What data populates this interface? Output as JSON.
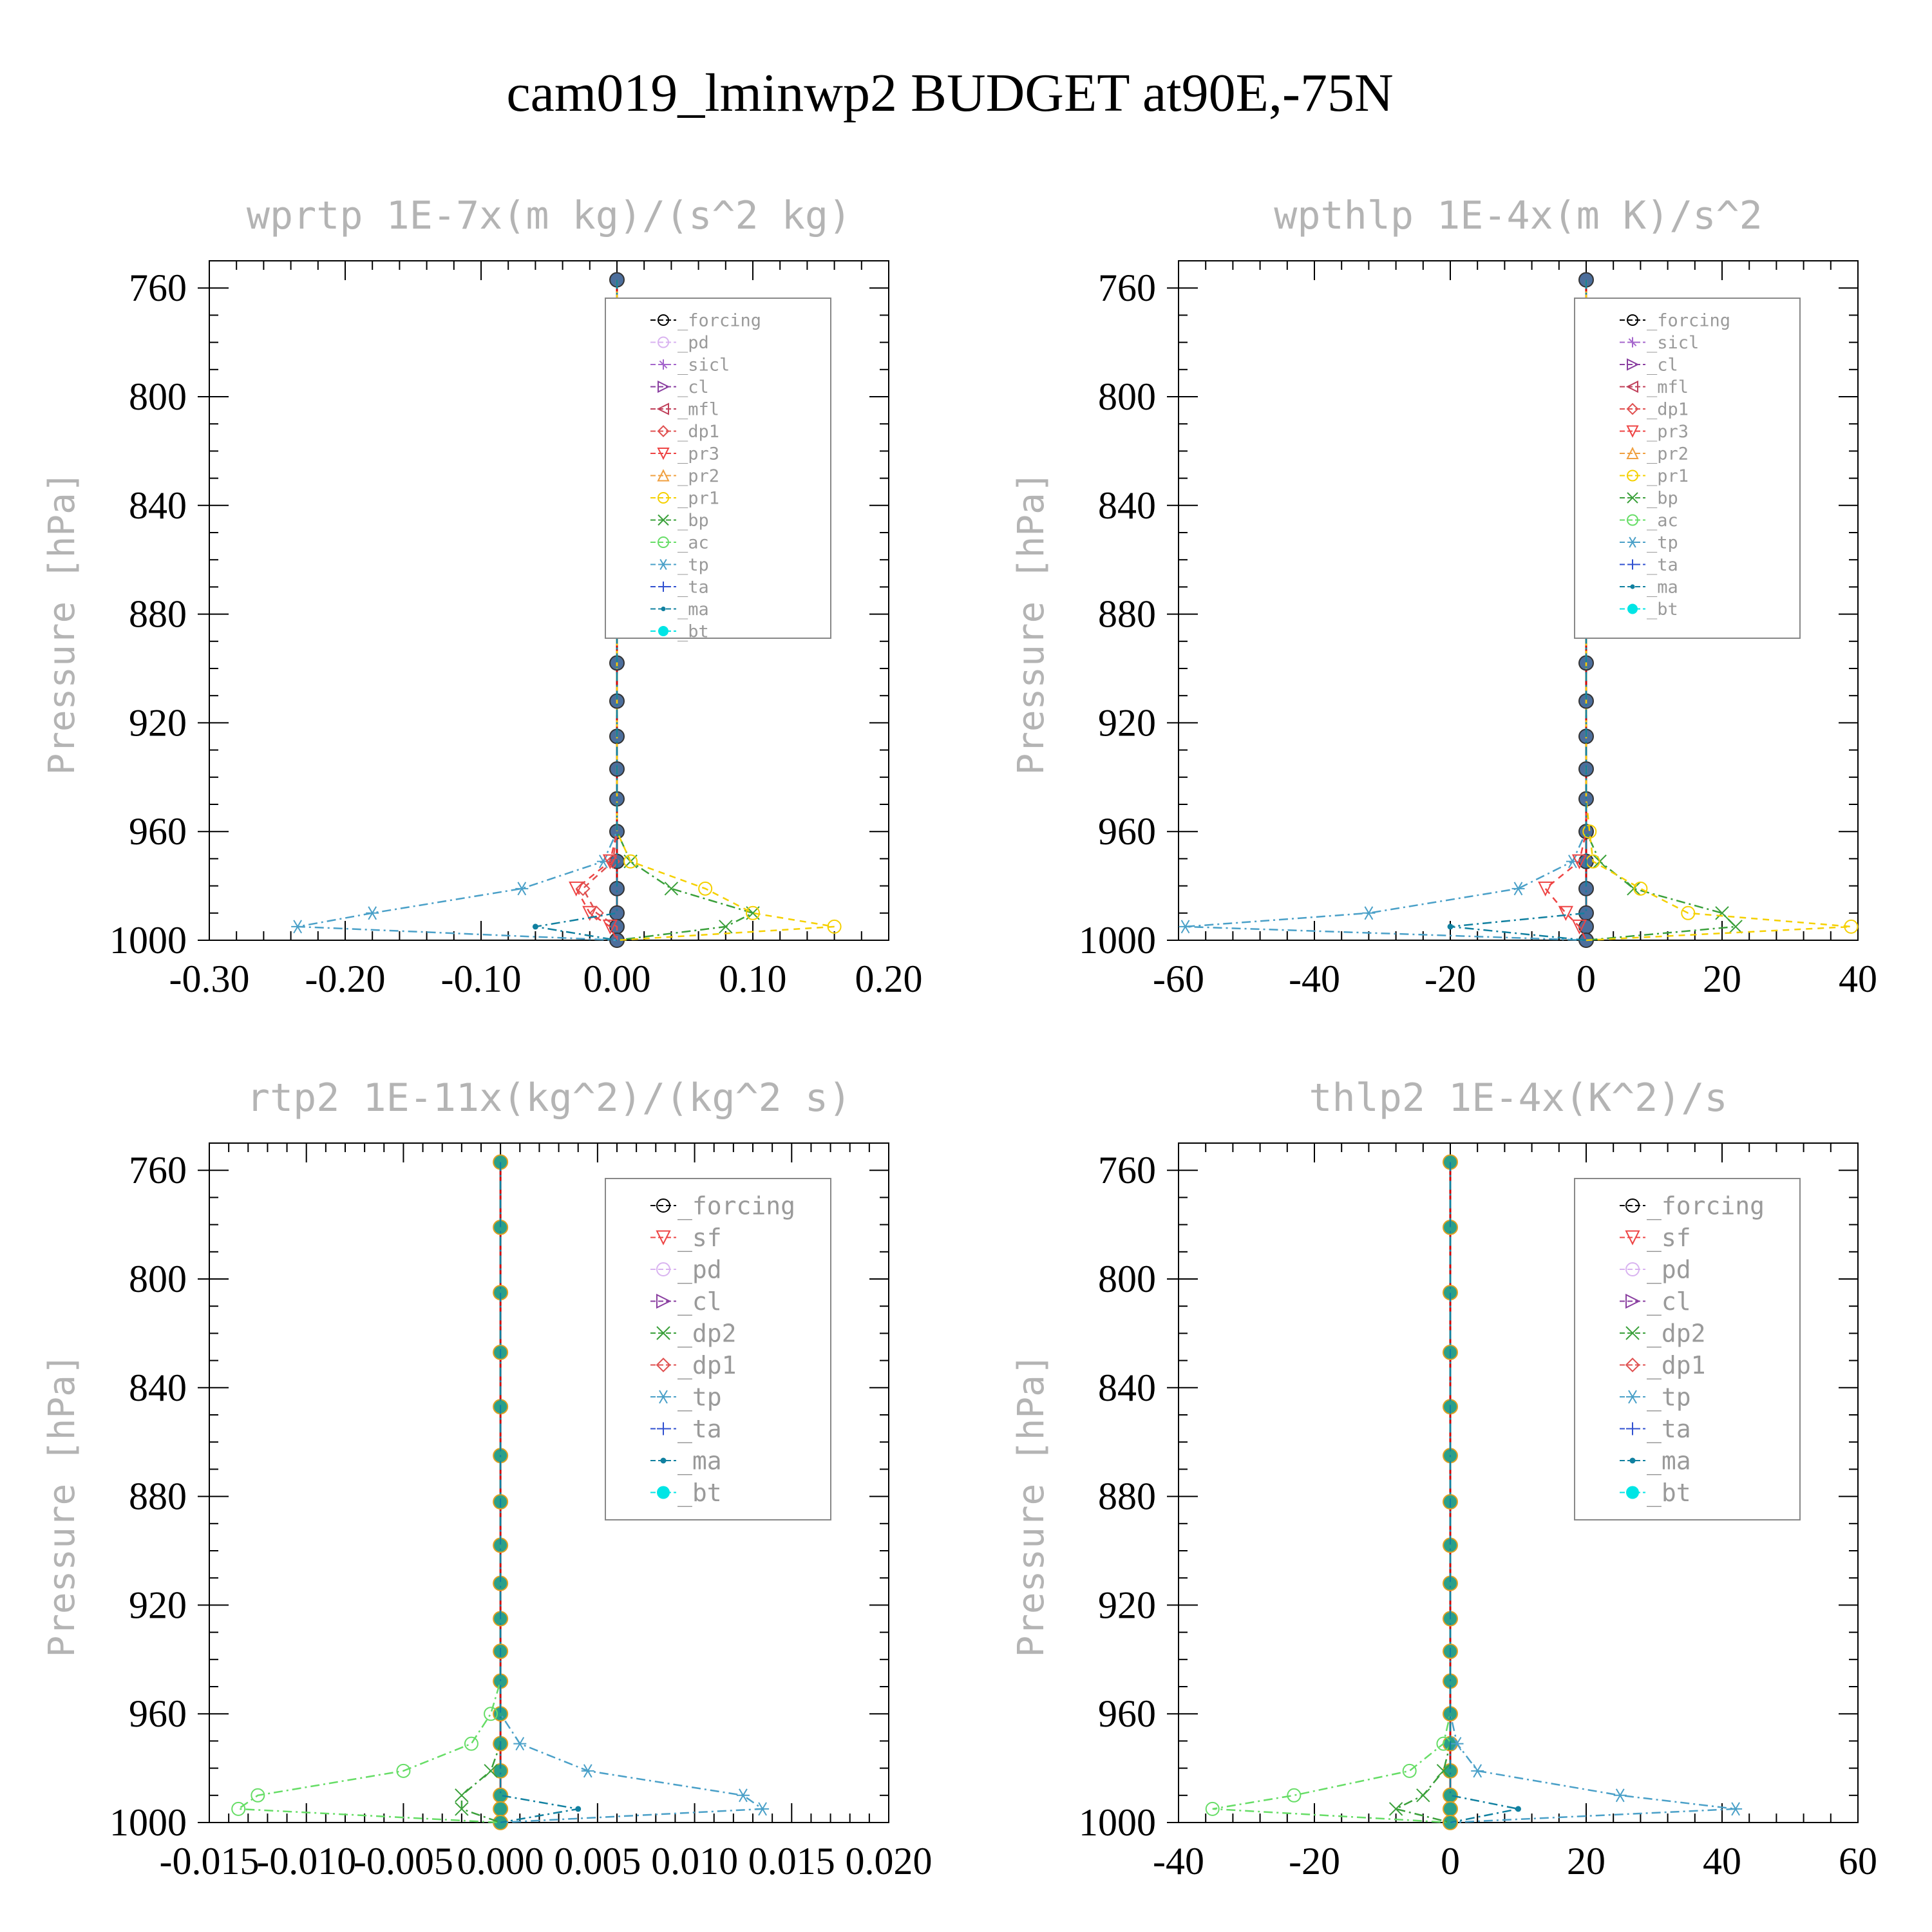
{
  "figure": {
    "title": "cam019_lminwp2  BUDGET at90E,-75N"
  },
  "colors": {
    "_forcing": "#000000",
    "_pd": "#d9b3f0",
    "_sicl": "#a566cc",
    "_cl": "#8a3fa0",
    "_mfl": "#c0405a",
    "_dp1": "#e05050",
    "_pr3": "#ee4444",
    "_pr2": "#f0a040",
    "_pr1": "#f5d000",
    "_bp": "#3aa03a",
    "_ac": "#66dd66",
    "_tp": "#4aa0c8",
    "_ta": "#3050d0",
    "_ma": "#1080a0",
    "_bt": "#00e5e5",
    "_sf": "#ee4444",
    "_dp2": "#3aa03a",
    "zero_line": "#d00000"
  },
  "chart_data": [
    {
      "type": "line",
      "title": "wprtp  1E-7x(m kg)/(s^2 kg)",
      "ylabel": "Pressure [hPa]",
      "xlabel": "",
      "xlim": [
        -0.3,
        0.2
      ],
      "ylim": [
        1000,
        750
      ],
      "xticks": [
        "-0.30",
        "-0.20",
        "-0.10",
        "0.00",
        "0.10",
        "0.20"
      ],
      "yticks": [
        "760",
        "800",
        "840",
        "880",
        "920",
        "960",
        "1000"
      ],
      "levels": [
        757,
        781,
        805,
        827,
        847,
        865,
        882,
        898,
        912,
        925,
        937,
        948,
        960,
        971,
        981,
        990,
        995,
        1000
      ],
      "legend": [
        "_forcing",
        "_pd",
        "_sicl",
        "_cl",
        "_mfl",
        "_dp1",
        "_pr3",
        "_pr2",
        "_pr1",
        "_bp",
        "_ac",
        "_tp",
        "_ta",
        "_ma",
        "_bt"
      ],
      "series": [
        {
          "name": "_tp",
          "nonzero": {
            "971": -0.01,
            "981": -0.07,
            "990": -0.18,
            "995": -0.235
          },
          "marker": "asterisk",
          "dash": "14,6,3,6"
        },
        {
          "name": "_pr3",
          "nonzero": {
            "971": -0.005,
            "981": -0.03,
            "990": -0.02,
            "995": -0.005
          },
          "marker": "tri-down",
          "dash": "10,8"
        },
        {
          "name": "_dp1",
          "nonzero": {
            "971": -0.003,
            "981": -0.025,
            "990": -0.015
          },
          "marker": "diamond",
          "dash": "10,8"
        },
        {
          "name": "_bp",
          "nonzero": {
            "971": 0.01,
            "981": 0.04,
            "990": 0.1,
            "995": 0.08
          },
          "marker": "x",
          "dash": "14,6,3,6"
        },
        {
          "name": "_pr1",
          "nonzero": {
            "971": 0.01,
            "981": 0.065,
            "990": 0.1,
            "995": 0.16
          },
          "marker": "circle",
          "dash": "10,8"
        },
        {
          "name": "_ma",
          "nonzero": {
            "995": -0.06
          },
          "marker": "dot",
          "dash": "14,6,3,6",
          "tail_to_zero": true
        }
      ]
    },
    {
      "type": "line",
      "title": "wpthlp  1E-4x(m K)/s^2",
      "ylabel": "Pressure [hPa]",
      "xlabel": "",
      "xlim": [
        -60,
        40
      ],
      "ylim": [
        1000,
        750
      ],
      "xticks": [
        "-60",
        "-40",
        "-20",
        "0",
        "20",
        "40"
      ],
      "yticks": [
        "760",
        "800",
        "840",
        "880",
        "920",
        "960",
        "1000"
      ],
      "levels": [
        757,
        781,
        805,
        827,
        847,
        865,
        882,
        898,
        912,
        925,
        937,
        948,
        960,
        971,
        981,
        990,
        995,
        1000
      ],
      "legend": [
        "_forcing",
        "_sicl",
        "_cl",
        "_mfl",
        "_dp1",
        "_pr3",
        "_pr2",
        "_pr1",
        "_bp",
        "_ac",
        "_tp",
        "_ta",
        "_ma",
        "_bt"
      ],
      "series": [
        {
          "name": "_tp",
          "nonzero": {
            "971": -2,
            "981": -10,
            "990": -32,
            "995": -59
          },
          "marker": "asterisk",
          "dash": "14,6,3,6"
        },
        {
          "name": "_pr3",
          "nonzero": {
            "971": -1,
            "981": -6,
            "990": -3,
            "995": -1
          },
          "marker": "tri-down",
          "dash": "10,8"
        },
        {
          "name": "_bp",
          "nonzero": {
            "971": 2,
            "981": 7,
            "990": 20,
            "995": 22
          },
          "marker": "x",
          "dash": "14,6,3,6"
        },
        {
          "name": "_pr1",
          "nonzero": {
            "960": 0.5,
            "971": 1,
            "981": 8,
            "990": 15,
            "995": 39
          },
          "marker": "circle",
          "dash": "10,8"
        },
        {
          "name": "_ma",
          "nonzero": {
            "995": -20
          },
          "marker": "dot",
          "dash": "14,6,3,6",
          "tail_to_zero": true
        }
      ]
    },
    {
      "type": "line",
      "title": "rtp2  1E-11x(kg^2)/(kg^2 s)",
      "ylabel": "Pressure [hPa]",
      "xlabel": "",
      "xlim": [
        -0.015,
        0.02
      ],
      "ylim": [
        1000,
        750
      ],
      "xticks": [
        "-0.015",
        "-0.010",
        "-0.005",
        "0.000",
        "0.005",
        "0.010",
        "0.015",
        "0.020"
      ],
      "yticks": [
        "760",
        "800",
        "840",
        "880",
        "920",
        "960",
        "1000"
      ],
      "levels": [
        757,
        781,
        805,
        827,
        847,
        865,
        882,
        898,
        912,
        925,
        937,
        948,
        960,
        971,
        981,
        990,
        995,
        1000
      ],
      "legend": [
        "_forcing",
        "_sf",
        "_pd",
        "_cl",
        "_dp2",
        "_dp1",
        "_tp",
        "_ta",
        "_ma",
        "_bt"
      ],
      "series": [
        {
          "name": "_dp1",
          "nonzero": {
            "960": -0.0005,
            "971": -0.0015,
            "981": -0.005,
            "990": -0.0125,
            "995": -0.0135
          },
          "marker": "circle",
          "dash": "14,6,3,6",
          "use_color": "_ac"
        },
        {
          "name": "_dp2",
          "nonzero": {
            "981": -0.0005,
            "990": -0.002,
            "995": -0.002
          },
          "marker": "x",
          "dash": "14,6,3,6"
        },
        {
          "name": "_tp",
          "nonzero": {
            "971": 0.001,
            "981": 0.0045,
            "990": 0.0125,
            "995": 0.0135
          },
          "marker": "asterisk",
          "dash": "14,6,3,6"
        },
        {
          "name": "_ma",
          "nonzero": {
            "995": 0.004
          },
          "marker": "dot",
          "dash": "14,6,3,6",
          "tail_to_zero": true
        }
      ]
    },
    {
      "type": "line",
      "title": "thlp2  1E-4x(K^2)/s",
      "ylabel": "Pressure [hPa]",
      "xlabel": "",
      "xlim": [
        -40,
        60
      ],
      "ylim": [
        1000,
        750
      ],
      "xticks": [
        "-40",
        "-20",
        "0",
        "20",
        "40",
        "60"
      ],
      "yticks": [
        "760",
        "800",
        "840",
        "880",
        "920",
        "960",
        "1000"
      ],
      "levels": [
        757,
        781,
        805,
        827,
        847,
        865,
        882,
        898,
        912,
        925,
        937,
        948,
        960,
        971,
        981,
        990,
        995,
        1000
      ],
      "legend": [
        "_forcing",
        "_sf",
        "_pd",
        "_cl",
        "_dp2",
        "_dp1",
        "_tp",
        "_ta",
        "_ma",
        "_bt"
      ],
      "series": [
        {
          "name": "_dp1",
          "nonzero": {
            "971": -1,
            "981": -6,
            "990": -23,
            "995": -35
          },
          "marker": "circle",
          "dash": "14,6,3,6",
          "use_color": "_ac"
        },
        {
          "name": "_dp2",
          "nonzero": {
            "981": -1,
            "990": -4,
            "995": -8
          },
          "marker": "x",
          "dash": "14,6,3,6"
        },
        {
          "name": "_tp",
          "nonzero": {
            "971": 1,
            "981": 4,
            "990": 25,
            "995": 42
          },
          "marker": "asterisk",
          "dash": "14,6,3,6"
        },
        {
          "name": "_ma",
          "nonzero": {
            "995": 10
          },
          "marker": "dot",
          "dash": "14,6,3,6",
          "tail_to_zero": true
        }
      ]
    }
  ]
}
